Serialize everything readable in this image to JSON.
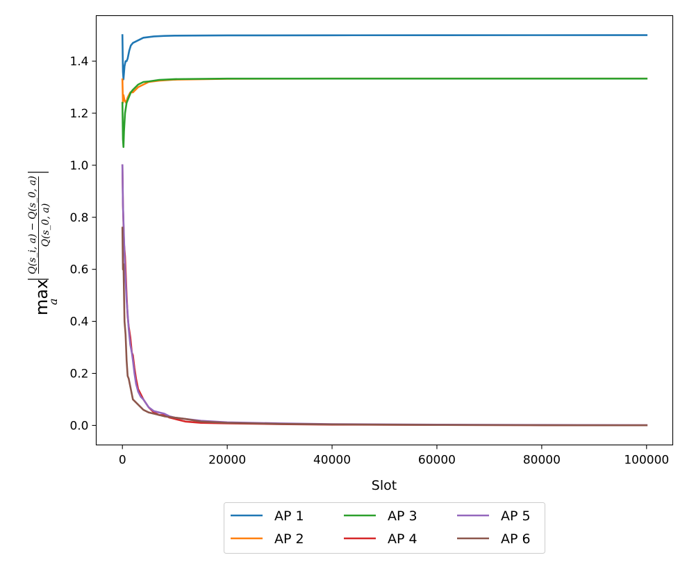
{
  "chart_data": {
    "type": "line",
    "xlabel": "Slot",
    "ylabel": {
      "operator": "max",
      "subscript": "a",
      "numerator": "Q(s_i, a) − Q(s_0, a)",
      "denominator": "Q(s_0, a)"
    },
    "xlim": [
      -5000,
      105000
    ],
    "ylim": [
      -0.075,
      1.575
    ],
    "xticks": [
      0,
      20000,
      40000,
      60000,
      80000,
      100000
    ],
    "xtick_labels": [
      "0",
      "20000",
      "40000",
      "60000",
      "80000",
      "100000"
    ],
    "yticks": [
      0.0,
      0.2,
      0.4,
      0.6,
      0.8,
      1.0,
      1.2,
      1.4
    ],
    "ytick_labels": [
      "0.0",
      "0.2",
      "0.4",
      "0.6",
      "0.8",
      "1.0",
      "1.2",
      "1.4"
    ],
    "grid": false,
    "legend": {
      "placement": "bottom-center-outside",
      "columns": 3
    },
    "series": [
      {
        "name": "AP 1",
        "color": "#1f77b4",
        "x": [
          0,
          100,
          200,
          400,
          600,
          800,
          1000,
          1300,
          1600,
          2000,
          3000,
          4000,
          6000,
          8000,
          10000,
          20000,
          40000,
          60000,
          80000,
          100000
        ],
        "y": [
          1.5,
          1.36,
          1.33,
          1.38,
          1.4,
          1.4,
          1.41,
          1.44,
          1.46,
          1.47,
          1.48,
          1.49,
          1.495,
          1.497,
          1.498,
          1.499,
          1.4995,
          1.4998,
          1.4999,
          1.5
        ]
      },
      {
        "name": "AP 2",
        "color": "#ff7f0e",
        "x": [
          0,
          100,
          200,
          400,
          700,
          1000,
          1500,
          2000,
          3000,
          4000,
          5000,
          7000,
          10000,
          20000,
          40000,
          60000,
          80000,
          100000
        ],
        "y": [
          1.33,
          1.24,
          1.27,
          1.25,
          1.24,
          1.26,
          1.28,
          1.28,
          1.3,
          1.31,
          1.32,
          1.325,
          1.329,
          1.332,
          1.333,
          1.333,
          1.333,
          1.333
        ]
      },
      {
        "name": "AP 3",
        "color": "#2ca02c",
        "x": [
          0,
          100,
          200,
          300,
          500,
          800,
          1200,
          1600,
          2000,
          2500,
          3000,
          4000,
          5000,
          7000,
          10000,
          20000,
          40000,
          60000,
          80000,
          100000
        ],
        "y": [
          1.24,
          1.1,
          1.07,
          1.13,
          1.2,
          1.24,
          1.26,
          1.28,
          1.29,
          1.3,
          1.31,
          1.32,
          1.322,
          1.328,
          1.331,
          1.333,
          1.333,
          1.333,
          1.333,
          1.333
        ]
      },
      {
        "name": "AP 4",
        "color": "#d62728",
        "x": [
          0,
          100,
          300,
          500,
          800,
          1000,
          1200,
          1500,
          1800,
          2000,
          2300,
          2600,
          3000,
          3500,
          4000,
          5000,
          6000,
          7000,
          8000,
          9000,
          10000,
          12000,
          15000,
          20000,
          30000,
          40000,
          60000,
          80000,
          100000
        ],
        "y": [
          1.0,
          0.85,
          0.7,
          0.65,
          0.5,
          0.42,
          0.38,
          0.34,
          0.28,
          0.27,
          0.22,
          0.18,
          0.14,
          0.12,
          0.1,
          0.07,
          0.05,
          0.04,
          0.04,
          0.03,
          0.025,
          0.015,
          0.01,
          0.008,
          0.005,
          0.003,
          0.002,
          0.001,
          0.0005
        ]
      },
      {
        "name": "AP 5",
        "color": "#9467bd",
        "x": [
          0,
          100,
          300,
          500,
          800,
          1000,
          1200,
          1500,
          1800,
          2000,
          2300,
          2600,
          3000,
          3500,
          4000,
          5000,
          6000,
          7000,
          8000,
          9000,
          10000,
          12000,
          15000,
          20000,
          30000,
          40000,
          60000,
          80000,
          100000
        ],
        "y": [
          1.0,
          0.85,
          0.72,
          0.6,
          0.48,
          0.43,
          0.37,
          0.31,
          0.28,
          0.25,
          0.2,
          0.16,
          0.13,
          0.11,
          0.1,
          0.07,
          0.055,
          0.05,
          0.045,
          0.035,
          0.03,
          0.025,
          0.018,
          0.012,
          0.008,
          0.005,
          0.003,
          0.002,
          0.001
        ]
      },
      {
        "name": "AP 6",
        "color": "#8c564b",
        "x": [
          0,
          100,
          200,
          400,
          600,
          800,
          1000,
          1200,
          1500,
          1800,
          2000,
          2500,
          3000,
          3500,
          4000,
          5000,
          6000,
          8000,
          10000,
          12000,
          15000,
          20000,
          30000,
          40000,
          60000,
          80000,
          100000
        ],
        "y": [
          0.76,
          0.6,
          0.62,
          0.4,
          0.35,
          0.25,
          0.19,
          0.18,
          0.15,
          0.12,
          0.1,
          0.09,
          0.08,
          0.07,
          0.06,
          0.05,
          0.045,
          0.035,
          0.03,
          0.025,
          0.015,
          0.01,
          0.006,
          0.004,
          0.002,
          0.001,
          0.0005
        ]
      }
    ]
  }
}
